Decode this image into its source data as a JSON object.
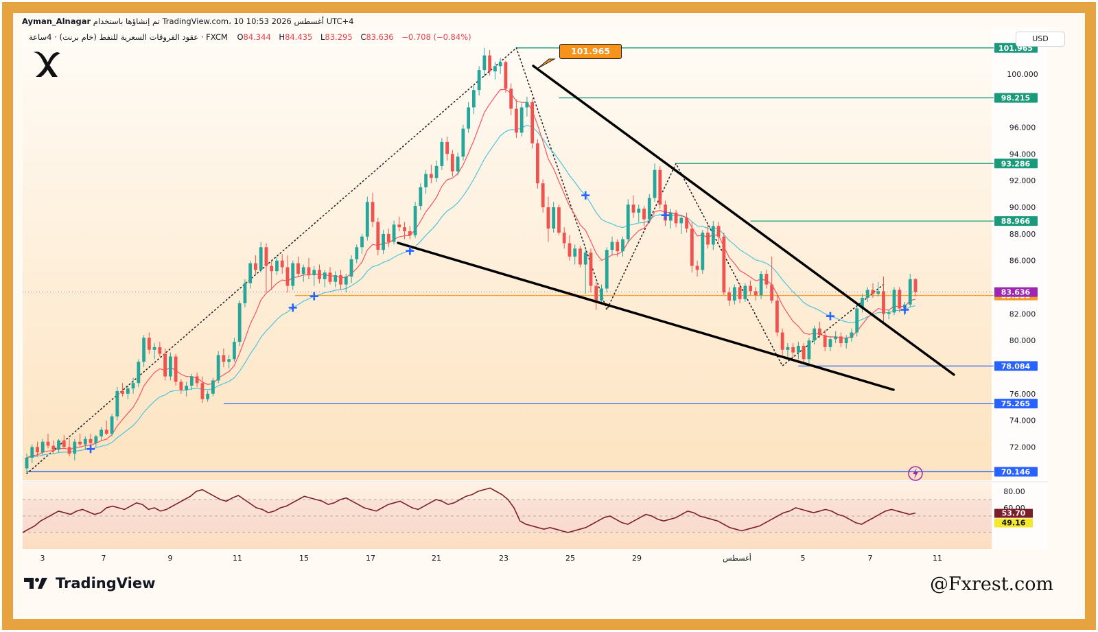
{
  "header": {
    "publisher": "Ayman_Alnagar",
    "published_text": "تم إنشاؤها باستخدام TradingView.com، 10 أغسطس 2026 10:53 UTC+4",
    "symbol_text": "عقود الفروقات السعرية للنفط (خام برنت) · 4ساعة · FXCM",
    "ohlc": [
      {
        "label": "O",
        "value": "84.344"
      },
      {
        "label": "H",
        "value": "84.435"
      },
      {
        "label": "L",
        "value": "83.295"
      },
      {
        "label": "C",
        "value": "83.636"
      }
    ],
    "change": "−0.708 (−0.84%)"
  },
  "currency": "USD",
  "footer": {
    "brand": "TradingView",
    "watermark": "@Fxrest.com"
  },
  "icons": [
    "brand-x-logo",
    "tradingview-logo",
    "lightning-icon",
    "signal-plus-icon"
  ],
  "colors": {
    "up": "#26a69a",
    "down": "#ef5350",
    "ema_fast": "#f7525f",
    "ema_slow": "#4fc3d9",
    "level_green": "#1a9a7b",
    "level_blue": "#2962ff",
    "level_orange": "#f59d2a",
    "price_purple": "#9c27b0",
    "rsi": "#7b1e2a",
    "frame": "#e6a33f"
  },
  "chart_data": {
    "type": "candlestick",
    "timeframe": "4h",
    "y_range": [
      69.5,
      103.5
    ],
    "price_ticks": [
      "100.000",
      "96.000",
      "94.000",
      "92.000",
      "90.000",
      "88.000",
      "86.000",
      "82.000",
      "80.000",
      "76.000",
      "74.000",
      "72.000"
    ],
    "time_ticks": [
      "3",
      "7",
      "9",
      "11",
      "15",
      "17",
      "21",
      "23",
      "25",
      "29",
      "أغسطس",
      "5",
      "7",
      "11"
    ],
    "levels": [
      {
        "value": 101.965,
        "label": "101.965",
        "color": "#1a9a7b"
      },
      {
        "value": 98.215,
        "label": "98.215",
        "color": "#1a9a7b"
      },
      {
        "value": 93.286,
        "label": "93.286",
        "color": "#1a9a7b"
      },
      {
        "value": 88.966,
        "label": "88.966",
        "color": "#1a9a7b"
      },
      {
        "value": 83.38,
        "label": "83.380",
        "color": "#f59d2a"
      },
      {
        "value": 78.084,
        "label": "78.084",
        "color": "#2962ff"
      },
      {
        "value": 75.265,
        "label": "75.265",
        "color": "#2962ff"
      },
      {
        "value": 70.146,
        "label": "70.146",
        "color": "#2962ff"
      }
    ],
    "last_price": {
      "value": 83.636,
      "label": "83.636"
    },
    "peak_label": "101.965",
    "candles": [
      [
        70.4,
        71.5,
        70.0,
        71.2
      ],
      [
        71.2,
        72.2,
        70.8,
        72.0
      ],
      [
        72.0,
        72.4,
        71.3,
        71.6
      ],
      [
        71.6,
        72.6,
        71.4,
        72.4
      ],
      [
        72.4,
        73.0,
        71.9,
        72.1
      ],
      [
        72.1,
        72.5,
        71.5,
        71.8
      ],
      [
        71.8,
        72.6,
        71.6,
        72.5
      ],
      [
        72.5,
        72.9,
        71.9,
        72.0
      ],
      [
        72.0,
        72.7,
        71.3,
        71.5
      ],
      [
        71.5,
        72.6,
        71.0,
        72.4
      ],
      [
        72.4,
        73.0,
        72.0,
        72.2
      ],
      [
        72.2,
        72.8,
        71.8,
        72.6
      ],
      [
        72.6,
        73.0,
        72.0,
        72.3
      ],
      [
        72.3,
        72.9,
        72.0,
        72.8
      ],
      [
        72.8,
        73.5,
        72.5,
        73.3
      ],
      [
        73.3,
        74.0,
        72.9,
        73.0
      ],
      [
        73.0,
        74.5,
        72.8,
        74.3
      ],
      [
        74.3,
        76.5,
        74.0,
        76.2
      ],
      [
        76.2,
        76.8,
        75.8,
        76.0
      ],
      [
        76.0,
        76.6,
        75.6,
        76.4
      ],
      [
        76.4,
        77.2,
        76.0,
        76.8
      ],
      [
        76.8,
        78.6,
        76.5,
        78.4
      ],
      [
        78.4,
        80.4,
        78.0,
        80.2
      ],
      [
        80.2,
        80.6,
        79.0,
        79.3
      ],
      [
        79.3,
        79.8,
        78.6,
        79.5
      ],
      [
        79.5,
        79.9,
        78.8,
        79.0
      ],
      [
        79.0,
        79.4,
        77.0,
        77.3
      ],
      [
        77.3,
        79.1,
        77.0,
        78.8
      ],
      [
        78.8,
        79.0,
        76.6,
        76.9
      ],
      [
        76.9,
        77.1,
        76.0,
        76.3
      ],
      [
        76.3,
        76.9,
        75.8,
        76.6
      ],
      [
        76.6,
        77.5,
        76.3,
        77.3
      ],
      [
        77.3,
        77.6,
        76.5,
        76.8
      ],
      [
        76.8,
        77.3,
        75.3,
        75.6
      ],
      [
        75.6,
        76.2,
        75.4,
        76.0
      ],
      [
        76.0,
        77.2,
        75.8,
        77.0
      ],
      [
        77.0,
        79.2,
        76.8,
        78.9
      ],
      [
        78.9,
        79.4,
        78.0,
        78.4
      ],
      [
        78.4,
        78.9,
        77.9,
        78.6
      ],
      [
        78.6,
        80.2,
        78.4,
        79.9
      ],
      [
        79.9,
        83.0,
        79.6,
        82.8
      ],
      [
        82.8,
        84.6,
        82.5,
        84.3
      ],
      [
        84.3,
        86.0,
        83.9,
        85.8
      ],
      [
        85.8,
        86.4,
        85.0,
        85.3
      ],
      [
        85.3,
        87.4,
        85.1,
        87.0
      ],
      [
        87.0,
        87.3,
        83.6,
        85.6
      ],
      [
        85.6,
        86.0,
        83.8,
        85.2
      ],
      [
        85.2,
        86.3,
        84.9,
        86.0
      ],
      [
        86.0,
        86.5,
        85.0,
        85.5
      ],
      [
        85.5,
        86.4,
        83.6,
        84.1
      ],
      [
        84.1,
        86.0,
        83.8,
        85.8
      ],
      [
        85.8,
        86.3,
        84.8,
        85.0
      ],
      [
        85.0,
        85.7,
        84.4,
        85.5
      ],
      [
        85.5,
        86.2,
        84.6,
        84.9
      ],
      [
        84.9,
        85.6,
        84.1,
        85.3
      ],
      [
        85.3,
        85.7,
        84.3,
        84.6
      ],
      [
        84.6,
        85.3,
        84.0,
        85.1
      ],
      [
        85.1,
        85.5,
        84.2,
        84.4
      ],
      [
        84.4,
        85.2,
        84.0,
        84.9
      ],
      [
        84.9,
        85.3,
        83.8,
        84.2
      ],
      [
        84.2,
        85.0,
        83.6,
        84.8
      ],
      [
        84.8,
        86.4,
        84.3,
        86.1
      ],
      [
        86.1,
        87.2,
        85.8,
        87.0
      ],
      [
        87.0,
        88.0,
        86.5,
        87.8
      ],
      [
        87.8,
        90.8,
        87.5,
        90.4
      ],
      [
        90.4,
        91.1,
        88.5,
        88.9
      ],
      [
        88.9,
        89.2,
        86.4,
        86.8
      ],
      [
        86.8,
        88.3,
        86.5,
        88.0
      ],
      [
        88.0,
        88.4,
        87.0,
        87.4
      ],
      [
        87.4,
        89.0,
        87.2,
        88.7
      ],
      [
        88.7,
        89.3,
        88.2,
        88.5
      ],
      [
        88.5,
        88.9,
        87.6,
        88.2
      ],
      [
        88.2,
        88.6,
        87.6,
        87.9
      ],
      [
        87.9,
        90.4,
        87.7,
        90.1
      ],
      [
        90.1,
        91.8,
        89.8,
        91.5
      ],
      [
        91.5,
        92.8,
        91.0,
        92.5
      ],
      [
        92.5,
        93.2,
        91.8,
        92.2
      ],
      [
        92.2,
        93.5,
        91.9,
        93.1
      ],
      [
        93.1,
        95.2,
        92.8,
        94.9
      ],
      [
        94.9,
        95.3,
        93.5,
        94.0
      ],
      [
        94.0,
        94.3,
        92.3,
        92.7
      ],
      [
        92.7,
        94.1,
        92.4,
        93.8
      ],
      [
        93.8,
        96.2,
        93.5,
        95.9
      ],
      [
        95.9,
        97.9,
        95.6,
        97.5
      ],
      [
        97.5,
        99.2,
        97.0,
        98.8
      ],
      [
        98.8,
        100.6,
        98.4,
        100.3
      ],
      [
        100.3,
        101.965,
        99.8,
        101.4
      ],
      [
        101.4,
        101.8,
        99.9,
        100.2
      ],
      [
        100.2,
        100.9,
        99.6,
        100.6
      ],
      [
        100.6,
        101.2,
        100.0,
        100.9
      ],
      [
        100.9,
        101.0,
        98.6,
        98.9
      ],
      [
        98.9,
        99.3,
        96.9,
        97.4
      ],
      [
        97.4,
        98.1,
        95.2,
        95.6
      ],
      [
        95.6,
        97.8,
        95.3,
        97.5
      ],
      [
        97.5,
        98.3,
        96.8,
        97.9
      ],
      [
        97.9,
        98.2,
        94.4,
        94.8
      ],
      [
        94.8,
        95.1,
        91.4,
        91.8
      ],
      [
        91.8,
        92.1,
        89.6,
        90.0
      ],
      [
        90.0,
        90.8,
        87.4,
        88.4
      ],
      [
        88.4,
        90.4,
        88.1,
        90.0
      ],
      [
        90.0,
        90.2,
        87.9,
        88.1
      ],
      [
        88.1,
        88.5,
        86.9,
        87.3
      ],
      [
        87.3,
        87.9,
        86.0,
        86.3
      ],
      [
        86.3,
        87.2,
        85.7,
        86.9
      ],
      [
        86.9,
        87.1,
        85.5,
        85.7
      ],
      [
        85.7,
        86.9,
        83.5,
        86.6
      ],
      [
        86.6,
        86.9,
        83.6,
        84.1
      ],
      [
        84.1,
        84.4,
        82.3,
        83.0
      ],
      [
        83.0,
        84.2,
        82.8,
        83.9
      ],
      [
        83.9,
        87.0,
        83.6,
        86.8
      ],
      [
        86.8,
        87.8,
        86.4,
        87.4
      ],
      [
        87.4,
        87.6,
        86.3,
        86.7
      ],
      [
        86.7,
        87.8,
        86.3,
        87.6
      ],
      [
        87.6,
        90.6,
        87.3,
        90.2
      ],
      [
        90.2,
        90.9,
        89.2,
        89.6
      ],
      [
        89.6,
        90.2,
        88.9,
        89.9
      ],
      [
        89.9,
        90.1,
        88.6,
        89.1
      ],
      [
        89.1,
        91.0,
        88.8,
        90.7
      ],
      [
        90.7,
        93.286,
        90.4,
        92.8
      ],
      [
        92.8,
        93.1,
        89.9,
        90.2
      ],
      [
        90.2,
        90.5,
        88.6,
        89.0
      ],
      [
        89.0,
        89.9,
        88.4,
        89.6
      ],
      [
        89.6,
        89.8,
        88.5,
        88.8
      ],
      [
        88.8,
        89.4,
        88.0,
        89.2
      ],
      [
        89.2,
        89.6,
        88.1,
        88.4
      ],
      [
        88.4,
        88.9,
        85.1,
        85.6
      ],
      [
        85.6,
        86.0,
        84.8,
        85.3
      ],
      [
        85.3,
        88.3,
        85.0,
        88.1
      ],
      [
        88.1,
        88.7,
        86.9,
        87.2
      ],
      [
        87.2,
        88.966,
        86.8,
        88.6
      ],
      [
        88.6,
        88.9,
        87.4,
        87.8
      ],
      [
        87.8,
        88.1,
        83.4,
        83.6
      ],
      [
        83.6,
        84.0,
        82.6,
        83.0
      ],
      [
        83.0,
        84.2,
        82.7,
        84.0
      ],
      [
        84.0,
        84.3,
        82.8,
        83.1
      ],
      [
        83.1,
        84.3,
        82.9,
        84.1
      ],
      [
        84.1,
        84.5,
        83.4,
        83.7
      ],
      [
        83.7,
        84.0,
        83.0,
        83.4
      ],
      [
        83.4,
        85.2,
        83.1,
        85.0
      ],
      [
        85.0,
        85.3,
        83.9,
        84.2
      ],
      [
        84.2,
        86.3,
        82.8,
        83.0
      ],
      [
        83.0,
        83.4,
        80.3,
        80.6
      ],
      [
        80.6,
        80.9,
        78.9,
        79.3
      ],
      [
        79.3,
        79.8,
        78.6,
        79.5
      ],
      [
        79.5,
        79.8,
        78.7,
        79.1
      ],
      [
        79.1,
        79.9,
        78.6,
        79.6
      ],
      [
        79.6,
        79.8,
        78.3,
        78.6
      ],
      [
        78.6,
        80.2,
        78.084,
        80.0
      ],
      [
        80.0,
        81.1,
        79.7,
        80.9
      ],
      [
        80.9,
        81.4,
        80.2,
        80.4
      ],
      [
        80.4,
        80.8,
        79.2,
        79.5
      ],
      [
        79.5,
        80.3,
        79.2,
        80.1
      ],
      [
        80.1,
        80.7,
        79.8,
        80.3
      ],
      [
        80.3,
        80.6,
        79.5,
        79.8
      ],
      [
        79.8,
        80.4,
        79.4,
        80.2
      ],
      [
        80.2,
        80.9,
        79.9,
        80.6
      ],
      [
        80.6,
        82.7,
        80.3,
        82.4
      ],
      [
        82.4,
        83.5,
        82.1,
        83.2
      ],
      [
        83.2,
        84.0,
        82.9,
        83.8
      ],
      [
        83.8,
        84.3,
        83.2,
        83.5
      ],
      [
        83.5,
        84.4,
        83.3,
        83.7
      ],
      [
        83.7,
        84.8,
        81.4,
        82.0
      ],
      [
        82.0,
        82.3,
        81.6,
        82.1
      ],
      [
        82.1,
        84.0,
        81.9,
        83.8
      ],
      [
        83.8,
        84.0,
        82.1,
        82.4
      ],
      [
        82.4,
        82.9,
        81.9,
        82.7
      ],
      [
        82.7,
        85.0,
        82.5,
        84.6
      ],
      [
        84.6,
        84.7,
        83.3,
        83.636
      ]
    ],
    "buy_signal_indices": [
      12,
      50,
      54,
      72,
      105,
      120,
      151,
      165
    ],
    "trendlines": [
      {
        "name": "upper-resistance",
        "from": [
          92,
          101.965
        ],
        "to": [
          185,
          77.8
        ]
      },
      {
        "name": "lower-support",
        "from": [
          69,
          87.8
        ],
        "to": [
          172,
          76.2
        ]
      }
    ],
    "dotted_paths": [
      {
        "name": "rally-path",
        "points": [
          [
            0,
            70.0
          ],
          [
            92,
            101.965
          ]
        ]
      },
      {
        "name": "swing-path",
        "points": [
          [
            92,
            101.965
          ],
          [
            109,
            82.3
          ],
          [
            122,
            93.286
          ],
          [
            142,
            78.1
          ],
          [
            161,
            84.2
          ]
        ]
      }
    ],
    "rsi": {
      "ticks": [
        "80.00",
        "60.00"
      ],
      "upper": 70,
      "lower": 30,
      "mid": 50,
      "current": "53.70",
      "signal": "49.16",
      "values": [
        30,
        34,
        38,
        44,
        48,
        52,
        56,
        54,
        52,
        56,
        58,
        55,
        52,
        54,
        60,
        62,
        60,
        58,
        62,
        66,
        64,
        58,
        60,
        56,
        58,
        62,
        66,
        70,
        74,
        80,
        82,
        78,
        74,
        70,
        68,
        72,
        75,
        70,
        65,
        60,
        58,
        54,
        56,
        60,
        62,
        66,
        70,
        74,
        72,
        70,
        68,
        64,
        66,
        70,
        72,
        68,
        64,
        60,
        58,
        56,
        60,
        64,
        66,
        68,
        64,
        60,
        58,
        62,
        66,
        70,
        68,
        64,
        66,
        70,
        74,
        76,
        80,
        82,
        84,
        80,
        76,
        70,
        60,
        44,
        40,
        38,
        36,
        34,
        36,
        34,
        32,
        30,
        32,
        34,
        36,
        40,
        44,
        48,
        50,
        46,
        42,
        40,
        44,
        48,
        52,
        50,
        46,
        44,
        46,
        48,
        52,
        56,
        54,
        50,
        48,
        46,
        44,
        40,
        36,
        34,
        32,
        34,
        36,
        38,
        42,
        46,
        50,
        54,
        56,
        60,
        58,
        56,
        54,
        56,
        58,
        56,
        52,
        50,
        46,
        42,
        40,
        44,
        48,
        52,
        56,
        58,
        56,
        54,
        52,
        53.7
      ]
    }
  }
}
